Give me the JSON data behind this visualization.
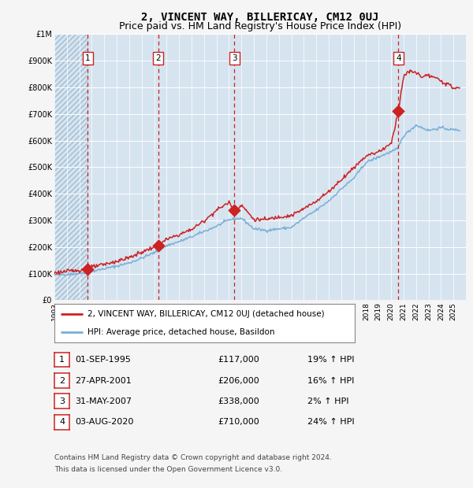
{
  "title": "2, VINCENT WAY, BILLERICAY, CM12 0UJ",
  "subtitle": "Price paid vs. HM Land Registry's House Price Index (HPI)",
  "ylim": [
    0,
    1000000
  ],
  "xlim_start": 1993,
  "xlim_end": 2026,
  "yticks": [
    0,
    100000,
    200000,
    300000,
    400000,
    500000,
    600000,
    700000,
    800000,
    900000,
    1000000
  ],
  "ytick_labels": [
    "£0",
    "£100K",
    "£200K",
    "£300K",
    "£400K",
    "£500K",
    "£600K",
    "£700K",
    "£800K",
    "£900K",
    "£1M"
  ],
  "hpi_color": "#7aaed6",
  "price_color": "#cc2222",
  "plot_bg_color": "#d6e4f0",
  "fig_bg_color": "#f5f5f5",
  "grid_color": "#ffffff",
  "sale_points": [
    {
      "year": 1995.67,
      "price": 117000,
      "label": "1"
    },
    {
      "year": 2001.33,
      "price": 206000,
      "label": "2"
    },
    {
      "year": 2007.42,
      "price": 338000,
      "label": "3"
    },
    {
      "year": 2020.58,
      "price": 710000,
      "label": "4"
    }
  ],
  "sale_vlines": [
    1995.67,
    2001.33,
    2007.42,
    2020.58
  ],
  "table_data": [
    {
      "num": "1",
      "date": "01-SEP-1995",
      "price": "£117,000",
      "hpi": "19% ↑ HPI"
    },
    {
      "num": "2",
      "date": "27-APR-2001",
      "price": "£206,000",
      "hpi": "16% ↑ HPI"
    },
    {
      "num": "3",
      "date": "31-MAY-2007",
      "price": "£338,000",
      "hpi": "2% ↑ HPI"
    },
    {
      "num": "4",
      "date": "03-AUG-2020",
      "price": "£710,000",
      "hpi": "24% ↑ HPI"
    }
  ],
  "legend_entries": [
    {
      "label": "2, VINCENT WAY, BILLERICAY, CM12 0UJ (detached house)",
      "color": "#cc2222"
    },
    {
      "label": "HPI: Average price, detached house, Basildon",
      "color": "#7aaed6"
    }
  ],
  "footnote1": "Contains HM Land Registry data © Crown copyright and database right 2024.",
  "footnote2": "This data is licensed under the Open Government Licence v3.0.",
  "title_fontsize": 10,
  "subtitle_fontsize": 9
}
